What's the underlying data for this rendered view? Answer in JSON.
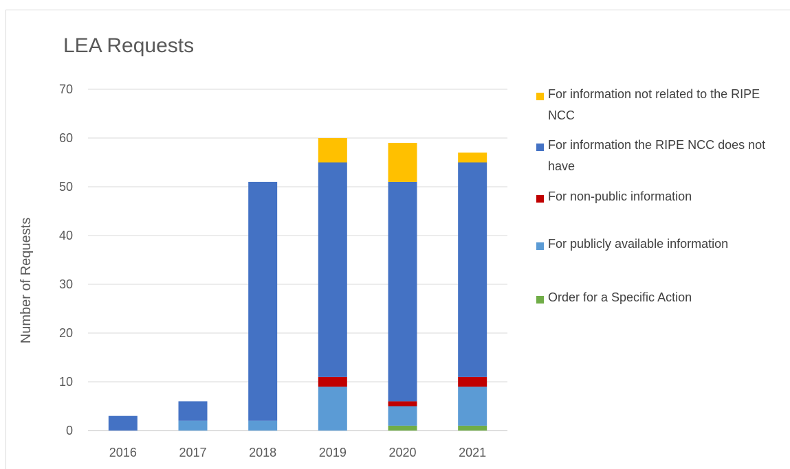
{
  "chart_data": {
    "type": "bar",
    "stacked": true,
    "title": "LEA Requests",
    "xlabel": "",
    "ylabel": "Number of Requests",
    "ylim": [
      0,
      70
    ],
    "yticks": [
      0,
      10,
      20,
      30,
      40,
      50,
      60,
      70
    ],
    "grid": true,
    "legend_position": "right",
    "categories": [
      "2016",
      "2017",
      "2018",
      "2019",
      "2020",
      "2021"
    ],
    "series": [
      {
        "name": "Order for a Specific Action",
        "color": "#70ad47",
        "values": [
          0,
          0,
          0,
          0,
          1,
          1
        ]
      },
      {
        "name": "For publicly available information",
        "color": "#5b9bd5",
        "values": [
          0,
          2,
          2,
          9,
          4,
          8
        ]
      },
      {
        "name": "For non-public information",
        "color": "#c00000",
        "values": [
          0,
          0,
          0,
          2,
          1,
          2
        ]
      },
      {
        "name": "For information the RIPE NCC does not have",
        "color": "#4472c4",
        "values": [
          3,
          4,
          49,
          44,
          45,
          44
        ]
      },
      {
        "name": "For information not related to the RIPE NCC",
        "color": "#ffc000",
        "values": [
          0,
          0,
          0,
          5,
          8,
          2
        ]
      }
    ],
    "legend_order": [
      "For information not related to the RIPE NCC",
      "For information the RIPE NCC does not have",
      "For non-public information",
      "For publicly available information",
      "Order for a Specific Action"
    ]
  }
}
